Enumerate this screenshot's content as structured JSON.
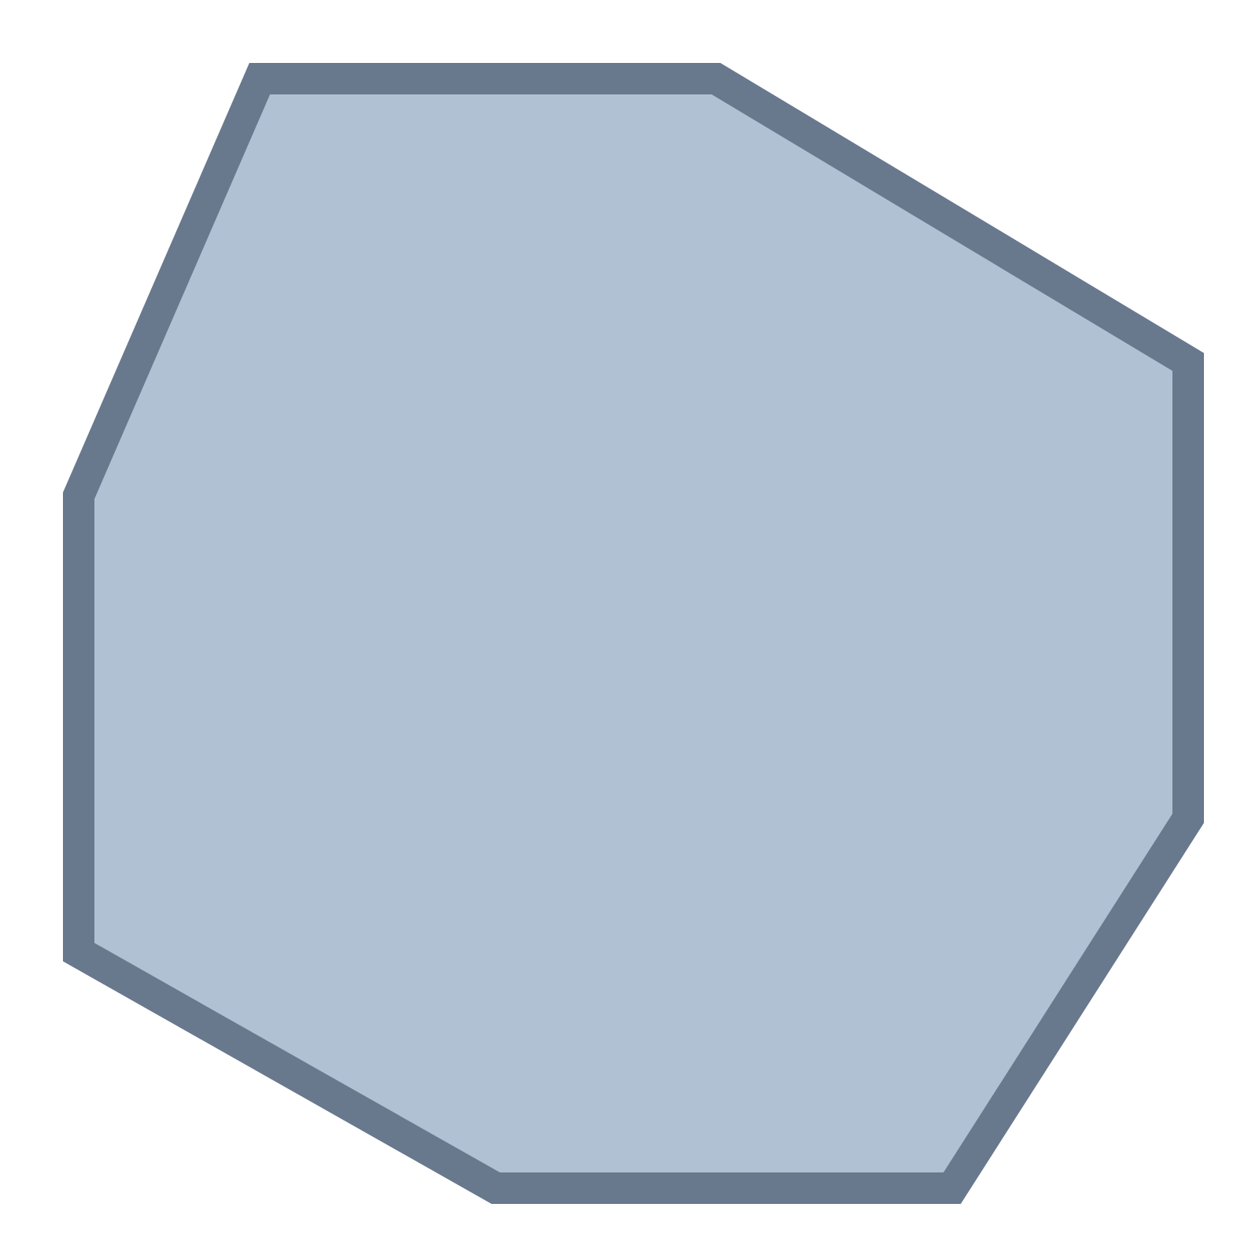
{
  "shape": {
    "kind": "polygon",
    "icon": "heptagon-icon",
    "fill_color": "#b0c1d3",
    "stroke_color": "#68788d",
    "background_color": "#ffffff"
  }
}
